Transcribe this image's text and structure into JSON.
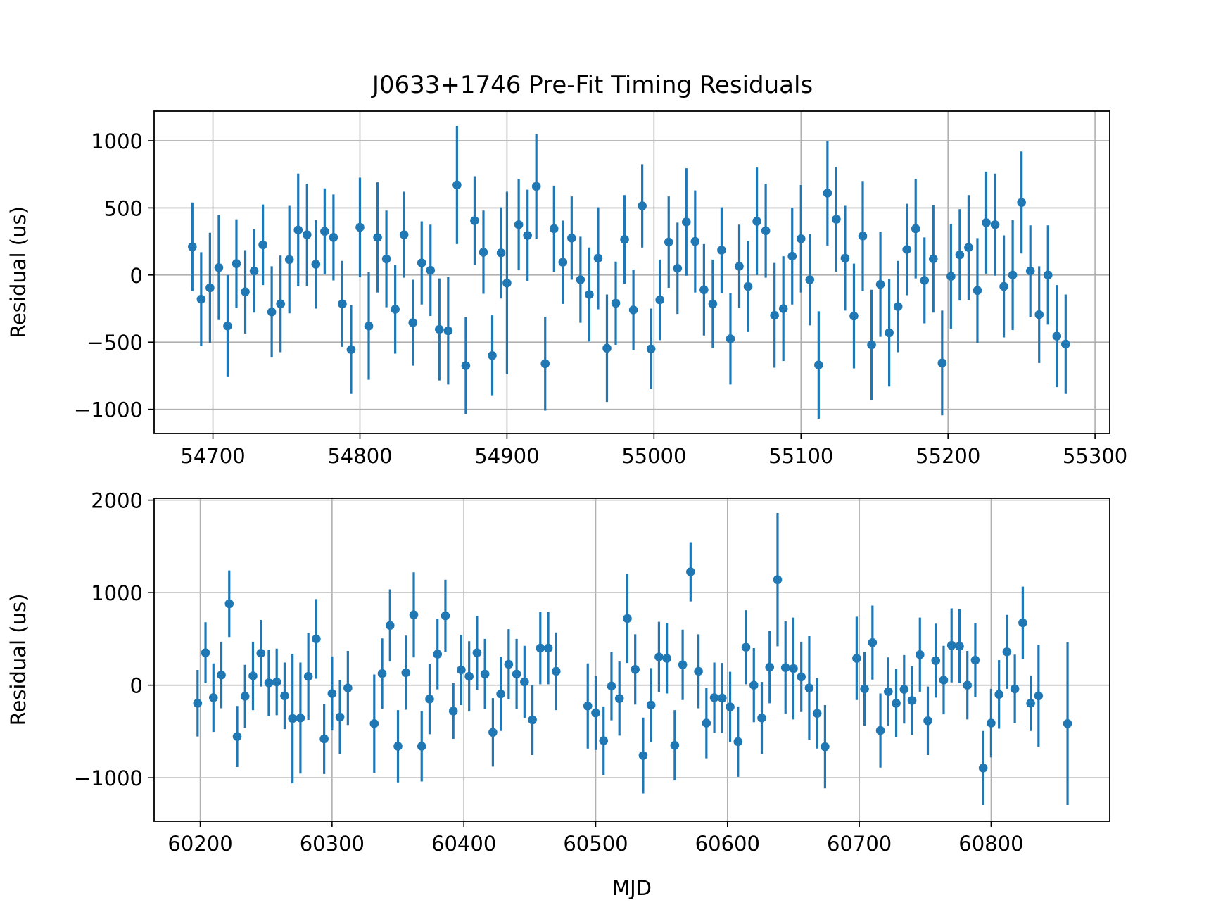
{
  "figure": {
    "title": "J0633+1746 Pre-Fit Timing Residuals"
  },
  "colors": {
    "series": "#1f77b4",
    "grid": "#b0b0b0",
    "axes": "#000000"
  },
  "chart_data": [
    {
      "type": "scatter",
      "style": "errorbar",
      "title": "J0633+1746 Pre-Fit Timing Residuals",
      "xlabel": "",
      "ylabel": "Residual (us)",
      "xlim": [
        54660,
        55310
      ],
      "ylim": [
        -1180,
        1220
      ],
      "xticks": [
        54700,
        54800,
        54900,
        55000,
        55100,
        55200,
        55300
      ],
      "xtick_labels": [
        "54700",
        "54800",
        "54900",
        "55000",
        "55100",
        "55200",
        "55300"
      ],
      "yticks": [
        -1000,
        -500,
        0,
        500,
        1000
      ],
      "ytick_labels": [
        "−1000",
        "−500",
        "0",
        "500",
        "1000"
      ],
      "grid": true,
      "points": [
        {
          "x": 54686,
          "y": 210,
          "err": 330
        },
        {
          "x": 54692,
          "y": -180,
          "err": 350
        },
        {
          "x": 54698,
          "y": -95,
          "err": 410
        },
        {
          "x": 54704,
          "y": 55,
          "err": 390
        },
        {
          "x": 54710,
          "y": -380,
          "err": 380
        },
        {
          "x": 54716,
          "y": 85,
          "err": 330
        },
        {
          "x": 54722,
          "y": -125,
          "err": 310
        },
        {
          "x": 54728,
          "y": 30,
          "err": 310
        },
        {
          "x": 54734,
          "y": 225,
          "err": 300
        },
        {
          "x": 54740,
          "y": -275,
          "err": 340
        },
        {
          "x": 54746,
          "y": -215,
          "err": 360
        },
        {
          "x": 54752,
          "y": 115,
          "err": 400
        },
        {
          "x": 54758,
          "y": 335,
          "err": 420
        },
        {
          "x": 54764,
          "y": 300,
          "err": 380
        },
        {
          "x": 54770,
          "y": 80,
          "err": 330
        },
        {
          "x": 54776,
          "y": 325,
          "err": 320
        },
        {
          "x": 54782,
          "y": 280,
          "err": 320
        },
        {
          "x": 54788,
          "y": -215,
          "err": 320
        },
        {
          "x": 54794,
          "y": -555,
          "err": 330
        },
        {
          "x": 54800,
          "y": 355,
          "err": 370
        },
        {
          "x": 54806,
          "y": -380,
          "err": 400
        },
        {
          "x": 54812,
          "y": 280,
          "err": 410
        },
        {
          "x": 54818,
          "y": 120,
          "err": 360
        },
        {
          "x": 54824,
          "y": -255,
          "err": 330
        },
        {
          "x": 54830,
          "y": 300,
          "err": 320
        },
        {
          "x": 54836,
          "y": -355,
          "err": 320
        },
        {
          "x": 54842,
          "y": 90,
          "err": 310
        },
        {
          "x": 54848,
          "y": 35,
          "err": 340
        },
        {
          "x": 54854,
          "y": -405,
          "err": 380
        },
        {
          "x": 54860,
          "y": -415,
          "err": 400
        },
        {
          "x": 54866,
          "y": 670,
          "err": 440
        },
        {
          "x": 54872,
          "y": -675,
          "err": 360
        },
        {
          "x": 54878,
          "y": 405,
          "err": 330
        },
        {
          "x": 54884,
          "y": 170,
          "err": 310
        },
        {
          "x": 54890,
          "y": -600,
          "err": 300
        },
        {
          "x": 54896,
          "y": 165,
          "err": 340
        },
        {
          "x": 54900,
          "y": -60,
          "err": 680
        },
        {
          "x": 54908,
          "y": 375,
          "err": 340
        },
        {
          "x": 54914,
          "y": 295,
          "err": 340
        },
        {
          "x": 54920,
          "y": 660,
          "err": 390
        },
        {
          "x": 54926,
          "y": -660,
          "err": 350
        },
        {
          "x": 54932,
          "y": 345,
          "err": 320
        },
        {
          "x": 54938,
          "y": 95,
          "err": 310
        },
        {
          "x": 54944,
          "y": 275,
          "err": 310
        },
        {
          "x": 54950,
          "y": -35,
          "err": 320
        },
        {
          "x": 54956,
          "y": -145,
          "err": 350
        },
        {
          "x": 54962,
          "y": 125,
          "err": 380
        },
        {
          "x": 54968,
          "y": -545,
          "err": 400
        },
        {
          "x": 54974,
          "y": -210,
          "err": 310
        },
        {
          "x": 54980,
          "y": 265,
          "err": 330
        },
        {
          "x": 54986,
          "y": -260,
          "err": 300
        },
        {
          "x": 54992,
          "y": 515,
          "err": 310
        },
        {
          "x": 54998,
          "y": -550,
          "err": 300
        },
        {
          "x": 55004,
          "y": -185,
          "err": 300
        },
        {
          "x": 55010,
          "y": 245,
          "err": 340
        },
        {
          "x": 55016,
          "y": 50,
          "err": 340
        },
        {
          "x": 55022,
          "y": 395,
          "err": 400
        },
        {
          "x": 55028,
          "y": 250,
          "err": 380
        },
        {
          "x": 55034,
          "y": -110,
          "err": 340
        },
        {
          "x": 55040,
          "y": -215,
          "err": 330
        },
        {
          "x": 55046,
          "y": 185,
          "err": 320
        },
        {
          "x": 55052,
          "y": -475,
          "err": 340
        },
        {
          "x": 55058,
          "y": 65,
          "err": 310
        },
        {
          "x": 55064,
          "y": -85,
          "err": 340
        },
        {
          "x": 55070,
          "y": 400,
          "err": 400
        },
        {
          "x": 55076,
          "y": 330,
          "err": 350
        },
        {
          "x": 55082,
          "y": -300,
          "err": 390
        },
        {
          "x": 55088,
          "y": -250,
          "err": 390
        },
        {
          "x": 55094,
          "y": 140,
          "err": 360
        },
        {
          "x": 55100,
          "y": 270,
          "err": 400
        },
        {
          "x": 55106,
          "y": -35,
          "err": 340
        },
        {
          "x": 55112,
          "y": -670,
          "err": 400
        },
        {
          "x": 55118,
          "y": 610,
          "err": 390
        },
        {
          "x": 55124,
          "y": 415,
          "err": 390
        },
        {
          "x": 55130,
          "y": 125,
          "err": 390
        },
        {
          "x": 55136,
          "y": -305,
          "err": 390
        },
        {
          "x": 55142,
          "y": 290,
          "err": 410
        },
        {
          "x": 55148,
          "y": -520,
          "err": 410
        },
        {
          "x": 55154,
          "y": -70,
          "err": 390
        },
        {
          "x": 55160,
          "y": -430,
          "err": 400
        },
        {
          "x": 55166,
          "y": -235,
          "err": 340
        },
        {
          "x": 55172,
          "y": 190,
          "err": 340
        },
        {
          "x": 55178,
          "y": 345,
          "err": 370
        },
        {
          "x": 55184,
          "y": -40,
          "err": 320
        },
        {
          "x": 55190,
          "y": 120,
          "err": 400
        },
        {
          "x": 55196,
          "y": -655,
          "err": 390
        },
        {
          "x": 55202,
          "y": -10,
          "err": 390
        },
        {
          "x": 55208,
          "y": 150,
          "err": 340
        },
        {
          "x": 55214,
          "y": 205,
          "err": 390
        },
        {
          "x": 55220,
          "y": -115,
          "err": 390
        },
        {
          "x": 55226,
          "y": 390,
          "err": 380
        },
        {
          "x": 55232,
          "y": 375,
          "err": 380
        },
        {
          "x": 55238,
          "y": -85,
          "err": 380
        },
        {
          "x": 55244,
          "y": 0,
          "err": 410
        },
        {
          "x": 55250,
          "y": 540,
          "err": 380
        },
        {
          "x": 55256,
          "y": 30,
          "err": 340
        },
        {
          "x": 55262,
          "y": -295,
          "err": 360
        },
        {
          "x": 55268,
          "y": 0,
          "err": 370
        },
        {
          "x": 55274,
          "y": -455,
          "err": 380
        },
        {
          "x": 55280,
          "y": -515,
          "err": 370
        }
      ]
    },
    {
      "type": "scatter",
      "style": "errorbar",
      "title": "",
      "xlabel": "MJD",
      "ylabel": "Residual (us)",
      "xlim": [
        60165,
        60890
      ],
      "ylim": [
        -1470,
        2020
      ],
      "xticks": [
        60200,
        60300,
        60400,
        60500,
        60600,
        60700,
        60800
      ],
      "xtick_labels": [
        "60200",
        "60300",
        "60400",
        "60500",
        "60600",
        "60700",
        "60800"
      ],
      "yticks": [
        -1000,
        0,
        1000,
        2000
      ],
      "ytick_labels": [
        "−1000",
        "0",
        "1000",
        "2000"
      ],
      "grid": true,
      "points": [
        {
          "x": 60198,
          "y": -195,
          "err": 360
        },
        {
          "x": 60204,
          "y": 350,
          "err": 330
        },
        {
          "x": 60210,
          "y": -135,
          "err": 370
        },
        {
          "x": 60216,
          "y": 110,
          "err": 360
        },
        {
          "x": 60222,
          "y": 880,
          "err": 360
        },
        {
          "x": 60228,
          "y": -555,
          "err": 330
        },
        {
          "x": 60234,
          "y": -120,
          "err": 340
        },
        {
          "x": 60240,
          "y": 100,
          "err": 370
        },
        {
          "x": 60246,
          "y": 345,
          "err": 360
        },
        {
          "x": 60252,
          "y": 25,
          "err": 360
        },
        {
          "x": 60258,
          "y": 35,
          "err": 360
        },
        {
          "x": 60264,
          "y": -115,
          "err": 360
        },
        {
          "x": 60270,
          "y": -360,
          "err": 700
        },
        {
          "x": 60276,
          "y": -355,
          "err": 600
        },
        {
          "x": 60282,
          "y": 95,
          "err": 470
        },
        {
          "x": 60288,
          "y": 500,
          "err": 430
        },
        {
          "x": 60294,
          "y": -580,
          "err": 380
        },
        {
          "x": 60300,
          "y": -90,
          "err": 400
        },
        {
          "x": 60306,
          "y": -345,
          "err": 400
        },
        {
          "x": 60312,
          "y": -30,
          "err": 400
        },
        {
          "x": 60332,
          "y": -415,
          "err": 530
        },
        {
          "x": 60338,
          "y": 125,
          "err": 380
        },
        {
          "x": 60344,
          "y": 645,
          "err": 390
        },
        {
          "x": 60350,
          "y": -660,
          "err": 390
        },
        {
          "x": 60356,
          "y": 135,
          "err": 400
        },
        {
          "x": 60362,
          "y": 760,
          "err": 460
        },
        {
          "x": 60368,
          "y": -660,
          "err": 380
        },
        {
          "x": 60374,
          "y": -150,
          "err": 380
        },
        {
          "x": 60380,
          "y": 335,
          "err": 380
        },
        {
          "x": 60386,
          "y": 750,
          "err": 390
        },
        {
          "x": 60392,
          "y": -280,
          "err": 300
        },
        {
          "x": 60398,
          "y": 165,
          "err": 380
        },
        {
          "x": 60404,
          "y": 95,
          "err": 380
        },
        {
          "x": 60410,
          "y": 350,
          "err": 400
        },
        {
          "x": 60416,
          "y": 120,
          "err": 380
        },
        {
          "x": 60422,
          "y": -510,
          "err": 370
        },
        {
          "x": 60428,
          "y": -95,
          "err": 400
        },
        {
          "x": 60434,
          "y": 225,
          "err": 380
        },
        {
          "x": 60440,
          "y": 120,
          "err": 380
        },
        {
          "x": 60446,
          "y": 35,
          "err": 390
        },
        {
          "x": 60452,
          "y": -375,
          "err": 380
        },
        {
          "x": 60458,
          "y": 400,
          "err": 390
        },
        {
          "x": 60464,
          "y": 400,
          "err": 390
        },
        {
          "x": 60470,
          "y": 150,
          "err": 420
        },
        {
          "x": 60494,
          "y": -225,
          "err": 460
        },
        {
          "x": 60500,
          "y": -300,
          "err": 400
        },
        {
          "x": 60506,
          "y": -600,
          "err": 370
        },
        {
          "x": 60512,
          "y": -10,
          "err": 370
        },
        {
          "x": 60518,
          "y": -145,
          "err": 400
        },
        {
          "x": 60524,
          "y": 720,
          "err": 480
        },
        {
          "x": 60530,
          "y": 170,
          "err": 380
        },
        {
          "x": 60536,
          "y": -760,
          "err": 410
        },
        {
          "x": 60542,
          "y": -215,
          "err": 400
        },
        {
          "x": 60548,
          "y": 305,
          "err": 380
        },
        {
          "x": 60554,
          "y": 290,
          "err": 380
        },
        {
          "x": 60560,
          "y": -650,
          "err": 380
        },
        {
          "x": 60566,
          "y": 220,
          "err": 380
        },
        {
          "x": 60572,
          "y": 1225,
          "err": 320
        },
        {
          "x": 60578,
          "y": 150,
          "err": 400
        },
        {
          "x": 60584,
          "y": -410,
          "err": 380
        },
        {
          "x": 60590,
          "y": -135,
          "err": 380
        },
        {
          "x": 60596,
          "y": -140,
          "err": 380
        },
        {
          "x": 60602,
          "y": -235,
          "err": 380
        },
        {
          "x": 60608,
          "y": -610,
          "err": 380
        },
        {
          "x": 60614,
          "y": 410,
          "err": 400
        },
        {
          "x": 60620,
          "y": 0,
          "err": 400
        },
        {
          "x": 60626,
          "y": -355,
          "err": 390
        },
        {
          "x": 60632,
          "y": 195,
          "err": 390
        },
        {
          "x": 60638,
          "y": 1140,
          "err": 720
        },
        {
          "x": 60644,
          "y": 190,
          "err": 500
        },
        {
          "x": 60650,
          "y": 180,
          "err": 550
        },
        {
          "x": 60656,
          "y": 90,
          "err": 380
        },
        {
          "x": 60662,
          "y": -30,
          "err": 560
        },
        {
          "x": 60668,
          "y": -305,
          "err": 380
        },
        {
          "x": 60674,
          "y": -665,
          "err": 450
        },
        {
          "x": 60698,
          "y": 290,
          "err": 450
        },
        {
          "x": 60704,
          "y": -40,
          "err": 400
        },
        {
          "x": 60710,
          "y": 460,
          "err": 400
        },
        {
          "x": 60716,
          "y": -490,
          "err": 400
        },
        {
          "x": 60722,
          "y": -70,
          "err": 370
        },
        {
          "x": 60728,
          "y": -195,
          "err": 370
        },
        {
          "x": 60734,
          "y": -45,
          "err": 370
        },
        {
          "x": 60740,
          "y": -165,
          "err": 370
        },
        {
          "x": 60746,
          "y": 330,
          "err": 400
        },
        {
          "x": 60752,
          "y": -385,
          "err": 370
        },
        {
          "x": 60758,
          "y": 265,
          "err": 400
        },
        {
          "x": 60764,
          "y": 55,
          "err": 370
        },
        {
          "x": 60770,
          "y": 430,
          "err": 400
        },
        {
          "x": 60776,
          "y": 420,
          "err": 400
        },
        {
          "x": 60782,
          "y": 0,
          "err": 370
        },
        {
          "x": 60788,
          "y": 270,
          "err": 400
        },
        {
          "x": 60794,
          "y": -895,
          "err": 400
        },
        {
          "x": 60800,
          "y": -410,
          "err": 370
        },
        {
          "x": 60806,
          "y": -100,
          "err": 370
        },
        {
          "x": 60812,
          "y": 360,
          "err": 400
        },
        {
          "x": 60818,
          "y": -40,
          "err": 370
        },
        {
          "x": 60824,
          "y": 675,
          "err": 390
        },
        {
          "x": 60830,
          "y": -195,
          "err": 300
        },
        {
          "x": 60836,
          "y": -115,
          "err": 550
        },
        {
          "x": 60858,
          "y": -415,
          "err": 880
        }
      ]
    }
  ]
}
